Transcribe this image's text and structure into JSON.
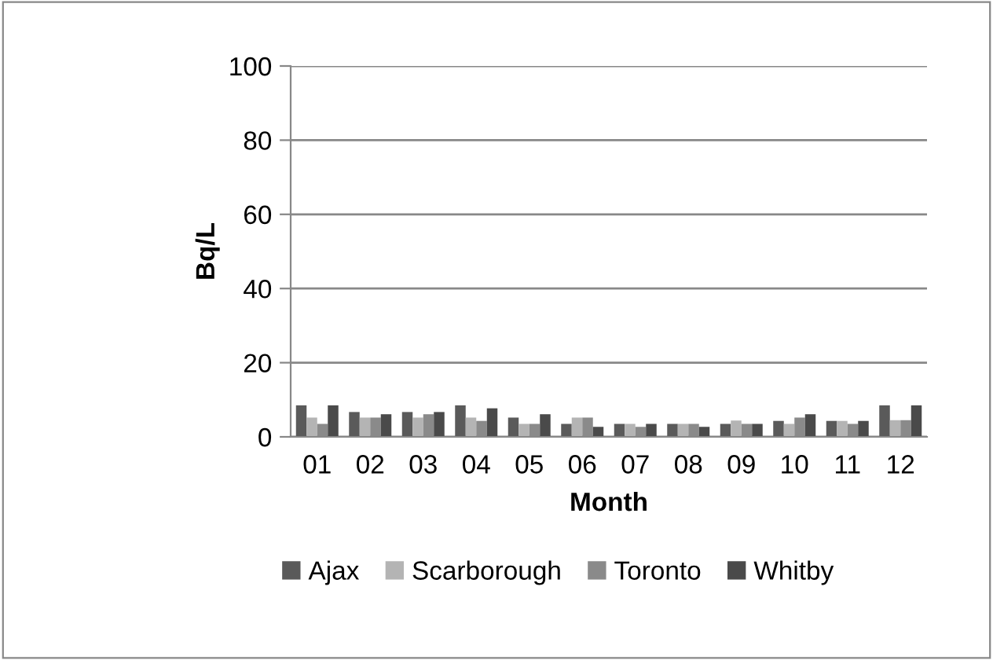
{
  "chart_data": {
    "type": "bar",
    "xlabel": "Month",
    "ylabel": "Bq/L",
    "categories": [
      "01",
      "02",
      "03",
      "04",
      "05",
      "06",
      "07",
      "08",
      "09",
      "10",
      "11",
      "12"
    ],
    "series": [
      {
        "name": "Ajax",
        "color": "#5a5a5a",
        "values": [
          8.5,
          6.7,
          6.7,
          8.5,
          5.2,
          3.5,
          3.5,
          3.5,
          3.5,
          4.3,
          4.3,
          8.5
        ]
      },
      {
        "name": "Scarborough",
        "color": "#b4b4b4",
        "values": [
          5.2,
          5.2,
          5.2,
          5.2,
          3.5,
          5.2,
          3.5,
          3.5,
          4.4,
          3.5,
          4.3,
          4.5
        ]
      },
      {
        "name": "Toronto",
        "color": "#8a8a8a",
        "values": [
          3.5,
          5.2,
          6.1,
          4.3,
          3.5,
          5.2,
          2.7,
          3.5,
          3.5,
          5.2,
          3.5,
          4.5
        ]
      },
      {
        "name": "Whitby",
        "color": "#4a4a4a",
        "values": [
          8.5,
          6.1,
          6.7,
          7.7,
          6.1,
          2.7,
          3.5,
          2.7,
          3.5,
          6.1,
          4.3,
          8.5
        ]
      }
    ],
    "ylim": [
      0,
      100
    ],
    "yticks": [
      0,
      20,
      40,
      60,
      80,
      100
    ],
    "grid": "y",
    "legend": "bottom"
  }
}
